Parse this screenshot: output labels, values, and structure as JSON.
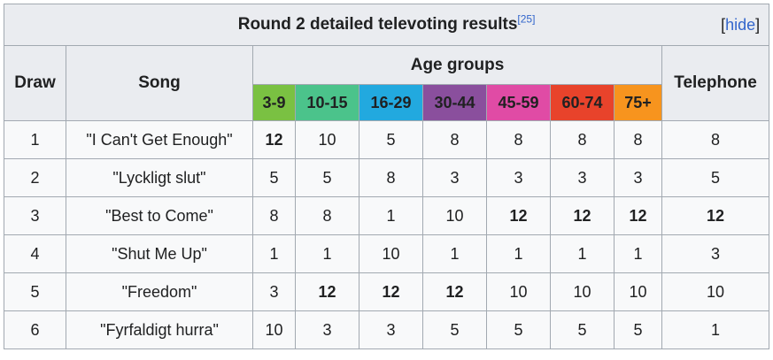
{
  "caption": {
    "title": "Round 2 detailed televoting results",
    "ref": "[25]",
    "toggle_open": "[",
    "toggle_label": "hide",
    "toggle_close": "]"
  },
  "headers": {
    "draw": "Draw",
    "song": "Song",
    "age_groups": "Age groups",
    "telephone": "Telephone"
  },
  "age_groups": [
    {
      "label": "3-9",
      "color": "#7ac142"
    },
    {
      "label": "10-15",
      "color": "#4bc38b"
    },
    {
      "label": "16-29",
      "color": "#22a9df"
    },
    {
      "label": "30-44",
      "color": "#8a4f9d"
    },
    {
      "label": "45-59",
      "color": "#e04ba5"
    },
    {
      "label": "60-74",
      "color": "#e8432b"
    },
    {
      "label": "75+",
      "color": "#f7941e"
    }
  ],
  "rows": [
    {
      "draw": "1",
      "song": "\"I Can't Get Enough\"",
      "scores": [
        "12",
        "10",
        "5",
        "8",
        "8",
        "8",
        "8"
      ],
      "telephone": "8"
    },
    {
      "draw": "2",
      "song": "\"Lyckligt slut\"",
      "scores": [
        "5",
        "5",
        "8",
        "3",
        "3",
        "3",
        "3"
      ],
      "telephone": "5"
    },
    {
      "draw": "3",
      "song": "\"Best to Come\"",
      "scores": [
        "8",
        "8",
        "1",
        "10",
        "12",
        "12",
        "12"
      ],
      "telephone": "12"
    },
    {
      "draw": "4",
      "song": "\"Shut Me Up\"",
      "scores": [
        "1",
        "1",
        "10",
        "1",
        "1",
        "1",
        "1"
      ],
      "telephone": "3"
    },
    {
      "draw": "5",
      "song": "\"Freedom\"",
      "scores": [
        "3",
        "12",
        "12",
        "12",
        "10",
        "10",
        "10"
      ],
      "telephone": "10"
    },
    {
      "draw": "6",
      "song": "\"Fyrfaldigt hurra\"",
      "scores": [
        "10",
        "3",
        "3",
        "5",
        "5",
        "5",
        "5"
      ],
      "telephone": "1"
    }
  ]
}
